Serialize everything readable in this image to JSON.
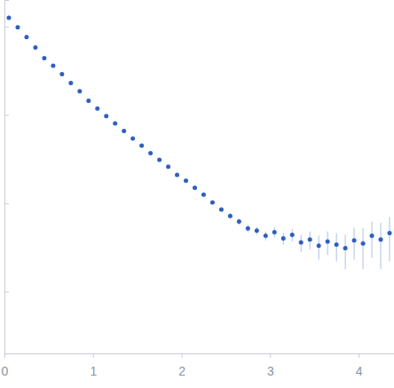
{
  "chart_data": {
    "type": "scatter",
    "color": "#2f5fbf",
    "marker": "circle",
    "x": [
      0.05,
      0.15,
      0.25,
      0.35,
      0.45,
      0.55,
      0.65,
      0.75,
      0.85,
      0.95,
      1.05,
      1.15,
      1.25,
      1.35,
      1.45,
      1.55,
      1.65,
      1.75,
      1.85,
      1.95,
      2.05,
      2.15,
      2.25,
      2.35,
      2.45,
      2.55,
      2.65,
      2.75,
      2.85,
      2.95,
      3.05,
      3.15,
      3.25,
      3.35,
      3.45,
      3.55,
      3.65,
      3.75,
      3.85,
      3.95,
      4.05,
      4.15,
      4.25,
      4.35
    ],
    "values": [
      1.26,
      0.98,
      0.76,
      0.58,
      0.44,
      0.36,
      0.29,
      0.23,
      0.185,
      0.145,
      0.118,
      0.097,
      0.08,
      0.066,
      0.054,
      0.045,
      0.037,
      0.031,
      0.026,
      0.021,
      0.018,
      0.015,
      0.0125,
      0.0102,
      0.0085,
      0.0072,
      0.0062,
      0.0052,
      0.0049,
      0.0043,
      0.0047,
      0.004,
      0.0044,
      0.0036,
      0.0039,
      0.0033,
      0.0037,
      0.0034,
      0.0031,
      0.0038,
      0.0035,
      0.0043,
      0.0039,
      0.0046
    ],
    "errors": [
      0.06,
      0.02,
      0.012,
      0.008,
      0.006,
      0.005,
      0.004,
      0.003,
      0.0025,
      0.002,
      0.0017,
      0.0014,
      0.0012,
      0.001,
      0.0009,
      0.0008,
      0.0007,
      0.0006,
      0.0006,
      0.0005,
      0.0005,
      0.0005,
      0.0005,
      0.0005,
      0.0005,
      0.0005,
      0.0005,
      0.0005,
      0.0005,
      0.0005,
      0.0006,
      0.0006,
      0.0007,
      0.0008,
      0.0009,
      0.001,
      0.0011,
      0.0012,
      0.0013,
      0.0015,
      0.0017,
      0.0019,
      0.0021,
      0.0024
    ],
    "xlim": [
      0,
      4.4
    ],
    "xticks": [
      0,
      1,
      2,
      3,
      4
    ],
    "ylim": [
      0.0002,
      2
    ],
    "yticks": [
      0.001,
      0.01,
      0.1,
      1
    ],
    "log": "y",
    "tick_labels": "x",
    "grid": false
  }
}
